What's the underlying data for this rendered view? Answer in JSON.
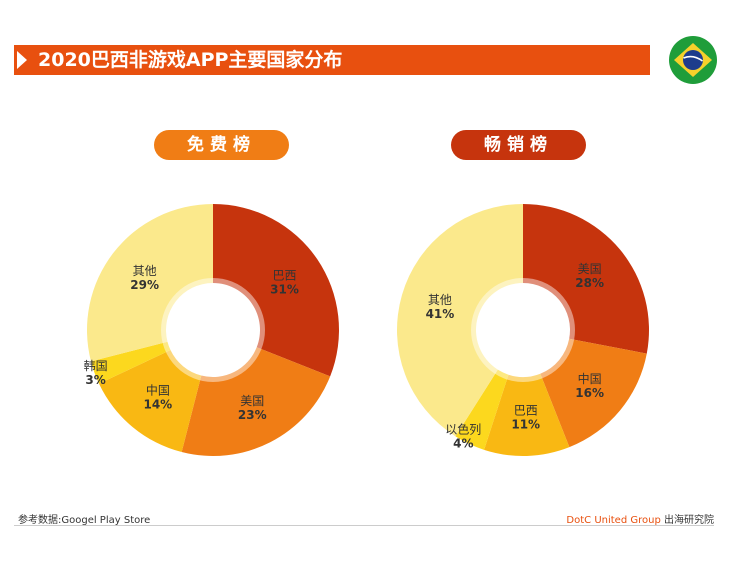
{
  "header": {
    "title": "2020巴西非游戏APP主要国家分布"
  },
  "flag": {
    "name": "brazil-flag-icon",
    "colors": {
      "green": "#1f9d3a",
      "yellow": "#f6d12b",
      "blue": "#1d3c8c"
    }
  },
  "chart_data": [
    {
      "type": "pie",
      "title": "免费榜",
      "slices": [
        {
          "label": "巴西",
          "value": 31,
          "value_label": "31%",
          "color": "#c6340d"
        },
        {
          "label": "美国",
          "value": 23,
          "value_label": "23%",
          "color": "#f07d15"
        },
        {
          "label": "中国",
          "value": 14,
          "value_label": "14%",
          "color": "#f9b813"
        },
        {
          "label": "韩国",
          "value": 3,
          "value_label": "3%",
          "color": "#fcd81e"
        },
        {
          "label": "其他",
          "value": 29,
          "value_label": "29%",
          "color": "#fbe98c"
        }
      ]
    },
    {
      "type": "pie",
      "title": "畅销榜",
      "slices": [
        {
          "label": "美国",
          "value": 28,
          "value_label": "28%",
          "color": "#c6340d"
        },
        {
          "label": "中国",
          "value": 16,
          "value_label": "16%",
          "color": "#f07d15"
        },
        {
          "label": "巴西",
          "value": 11,
          "value_label": "11%",
          "color": "#f9b813"
        },
        {
          "label": "以色列",
          "value": 4,
          "value_label": "4%",
          "color": "#fcd81e"
        },
        {
          "label": "其他",
          "value": 41,
          "value_label": "41%",
          "color": "#fbe98c"
        }
      ]
    }
  ],
  "footer": {
    "source": "参考数据:Googel Play Store",
    "brand": "DotC United Group",
    "org": "出海研究院"
  }
}
